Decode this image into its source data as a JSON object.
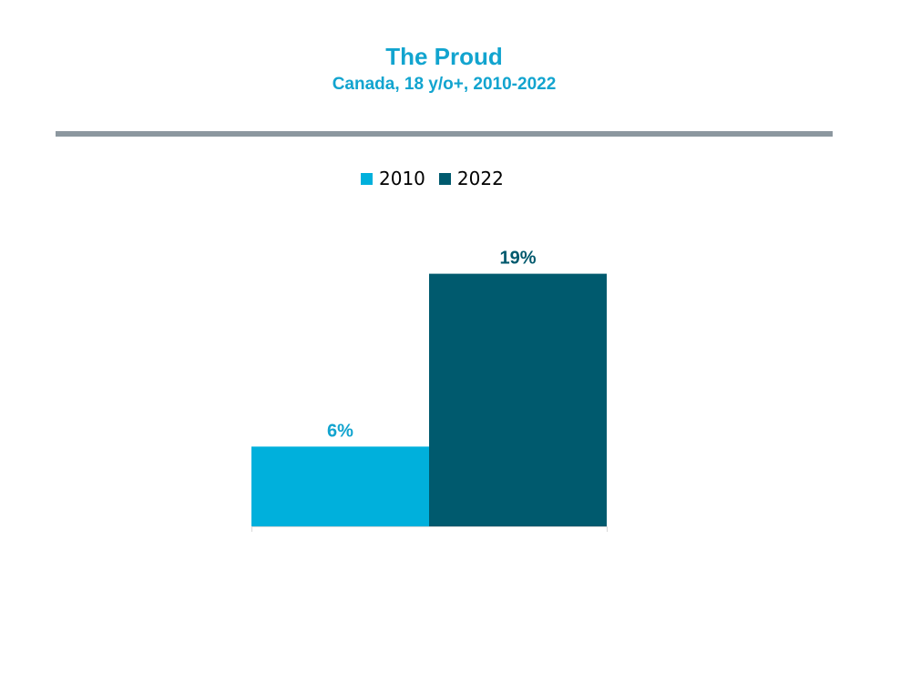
{
  "chart_data": {
    "type": "bar",
    "title": "The Proud",
    "subtitle": "Canada, 18 y/o+, 2010-2022",
    "categories": [
      ""
    ],
    "series": [
      {
        "name": "2010",
        "values": [
          6
        ],
        "color": "#00b0dc",
        "label_color": "#12a4cf",
        "data_label": "6%"
      },
      {
        "name": "2022",
        "values": [
          19
        ],
        "color": "#005a6e",
        "label_color": "#00596d",
        "data_label": "19%"
      }
    ],
    "ylim": [
      0,
      20
    ],
    "grid": false,
    "legend_position": "top-center",
    "accent_color": "#12a4cf",
    "rule_color": "#8c979f"
  }
}
